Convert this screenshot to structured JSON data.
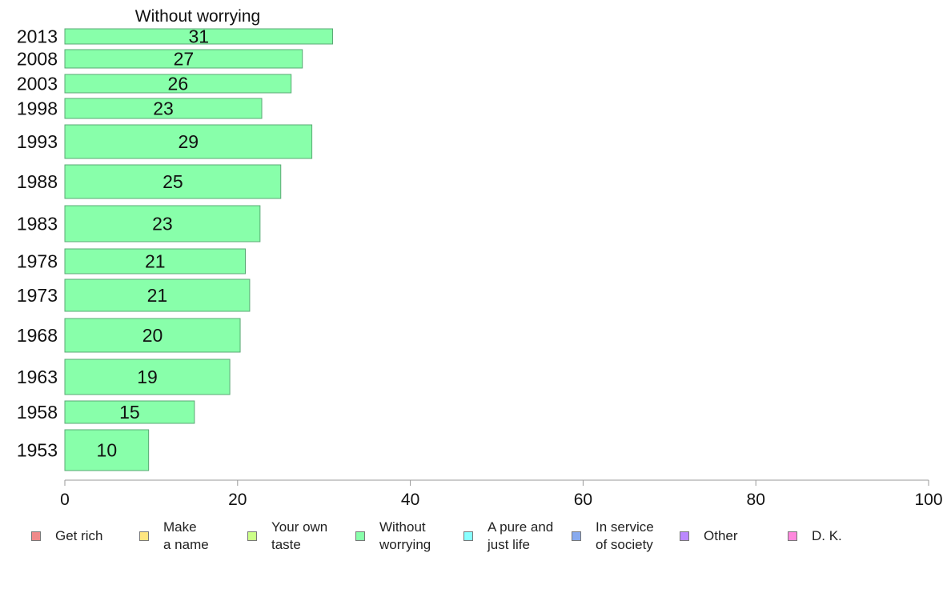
{
  "chart_data": {
    "type": "bar",
    "orientation": "horizontal",
    "title": "Without worrying",
    "categories": [
      "2013",
      "2008",
      "2003",
      "1998",
      "1993",
      "1988",
      "1983",
      "1978",
      "1973",
      "1968",
      "1963",
      "1958",
      "1953"
    ],
    "values": [
      31,
      27.5,
      26.2,
      22.8,
      28.6,
      25,
      22.6,
      20.9,
      21.4,
      20.3,
      19.1,
      15,
      9.7
    ],
    "data_labels": [
      "31",
      "27",
      "26",
      "23",
      "29",
      "25",
      "23",
      "21",
      "21",
      "20",
      "19",
      "15",
      "10"
    ],
    "xlim": [
      0,
      100
    ],
    "xticks": [
      "0",
      "20",
      "40",
      "60",
      "80",
      "100"
    ],
    "bar_color": "#88ffaa",
    "bar_edge_color": "#5aa874",
    "legend": {
      "placement": "bottom",
      "entries": [
        {
          "label": "Get rich",
          "color": "#f08a8a"
        },
        {
          "label": "Make\na name",
          "color": "#ffe680"
        },
        {
          "label": "Your own\ntaste",
          "color": "#ccff88"
        },
        {
          "label": "Without\nworrying",
          "color": "#88ffaa"
        },
        {
          "label": "A pure and\njust life",
          "color": "#88ffff"
        },
        {
          "label": "In service\nof society",
          "color": "#88aaee"
        },
        {
          "label": "Other",
          "color": "#bb88ff"
        },
        {
          "label": "D. K.",
          "color": "#ff88dd"
        }
      ]
    }
  }
}
